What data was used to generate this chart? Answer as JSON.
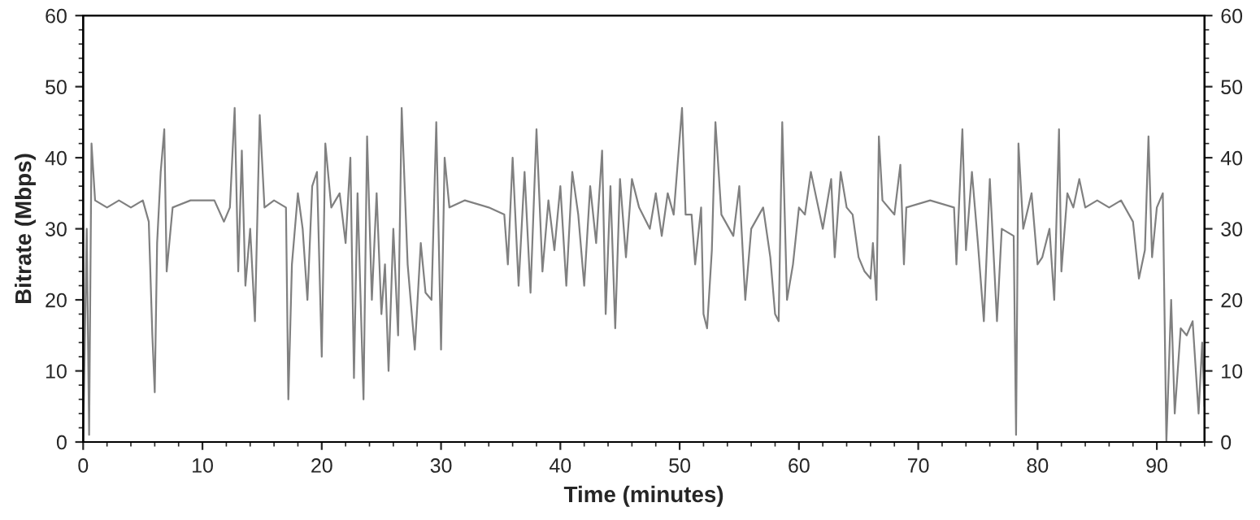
{
  "chart_data": {
    "type": "line",
    "xlabel": "Time (minutes)",
    "ylabel": "Bitrate (Mbps)",
    "x": [
      0,
      0.3,
      0.5,
      0.7,
      1,
      2,
      3,
      4,
      5,
      5.5,
      5.8,
      6.0,
      6.2,
      6.5,
      6.8,
      7,
      7.5,
      9,
      11,
      11.8,
      12.3,
      12.7,
      13,
      13.3,
      13.6,
      14,
      14.4,
      14.8,
      15.2,
      16,
      17,
      17.2,
      17.5,
      18,
      18.4,
      18.8,
      19.2,
      19.6,
      20,
      20.3,
      20.8,
      21.5,
      22,
      22.4,
      22.7,
      23,
      23.5,
      23.8,
      24.2,
      24.6,
      25,
      25.3,
      25.6,
      26,
      26.4,
      26.7,
      27.2,
      27.8,
      28.3,
      28.7,
      29.2,
      29.6,
      30,
      30.3,
      30.7,
      32,
      34,
      35.3,
      35.6,
      36,
      36.5,
      37,
      37.5,
      38,
      38.5,
      39,
      39.5,
      40,
      40.5,
      41,
      41.5,
      42,
      42.5,
      43,
      43.5,
      43.8,
      44.2,
      44.6,
      45,
      45.5,
      46,
      46.6,
      47.5,
      48,
      48.5,
      49,
      49.5,
      50.2,
      50.5,
      51,
      51.3,
      51.8,
      52,
      52.3,
      52.7,
      53,
      53.5,
      54.5,
      55,
      55.5,
      56,
      57,
      57.6,
      58,
      58.3,
      58.6,
      59,
      59.5,
      60,
      60.5,
      61,
      61.5,
      62,
      62.7,
      63,
      63.5,
      64,
      64.5,
      65,
      65.5,
      66,
      66.2,
      66.5,
      66.7,
      67,
      68,
      68.5,
      68.8,
      69,
      71,
      73,
      73.2,
      73.7,
      74,
      74.5,
      75,
      75.5,
      76,
      76.6,
      77,
      78,
      78.2,
      78.4,
      78.8,
      79.5,
      80,
      80.4,
      81,
      81.4,
      81.8,
      82,
      82.5,
      83,
      83.5,
      84,
      85,
      86,
      87,
      88,
      88.5,
      89,
      89.3,
      89.6,
      90,
      90.5,
      90.8,
      91.2,
      91.5,
      92,
      92.5,
      93,
      93.5,
      93.8,
      94
    ],
    "series": [
      {
        "color": "#808080",
        "values": [
          0,
          30,
          1,
          42,
          34,
          33,
          34,
          33,
          34,
          31,
          15,
          7,
          28,
          38,
          44,
          24,
          33,
          34,
          34,
          31,
          33,
          47,
          24,
          41,
          22,
          30,
          17,
          46,
          33,
          34,
          33,
          6,
          25,
          35,
          30,
          20,
          36,
          38,
          12,
          42,
          33,
          35,
          28,
          40,
          9,
          35,
          6,
          43,
          20,
          35,
          18,
          25,
          10,
          30,
          15,
          47,
          25,
          13,
          28,
          21,
          20,
          45,
          13,
          40,
          33,
          34,
          33,
          32,
          25,
          40,
          22,
          38,
          21,
          44,
          24,
          34,
          27,
          36,
          22,
          38,
          32,
          22,
          36,
          28,
          41,
          18,
          36,
          16,
          37,
          26,
          37,
          33,
          30,
          35,
          29,
          35,
          32,
          47,
          32,
          32,
          25,
          33,
          18,
          16,
          27,
          45,
          32,
          29,
          36,
          20,
          30,
          33,
          26,
          18,
          17,
          45,
          20,
          25,
          33,
          32,
          38,
          34,
          30,
          37,
          26,
          38,
          33,
          32,
          26,
          24,
          23,
          28,
          20,
          43,
          34,
          32,
          39,
          25,
          33,
          34,
          33,
          25,
          44,
          27,
          38,
          28,
          17,
          37,
          17,
          30,
          29,
          1,
          42,
          30,
          35,
          25,
          26,
          30,
          20,
          44,
          24,
          35,
          33,
          37,
          33,
          34,
          33,
          34,
          31,
          23,
          27,
          43,
          26,
          33,
          35,
          0,
          20,
          4,
          16,
          15,
          17,
          4,
          14,
          5
        ]
      }
    ],
    "xlim": [
      0,
      94
    ],
    "xticks": [
      0,
      10,
      20,
      30,
      40,
      50,
      60,
      70,
      80,
      90
    ],
    "ylim": [
      0,
      60
    ],
    "yticks": [
      0,
      10,
      20,
      30,
      40,
      50,
      60
    ],
    "y2lim": [
      0,
      60
    ],
    "y2ticks": [
      0,
      10,
      20,
      30,
      40,
      50,
      60
    ],
    "grid": false,
    "line_style": "solid",
    "marker": "none"
  }
}
